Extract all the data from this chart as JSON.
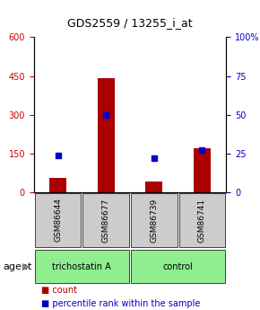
{
  "title": "GDS2559 / 13255_i_at",
  "samples": [
    "GSM86644",
    "GSM86677",
    "GSM86739",
    "GSM86741"
  ],
  "counts": [
    55,
    440,
    40,
    170
  ],
  "percentile_ranks": [
    24,
    50,
    22,
    27
  ],
  "ylim_left": [
    0,
    600
  ],
  "ylim_right": [
    0,
    100
  ],
  "yticks_left": [
    0,
    150,
    300,
    450,
    600
  ],
  "yticks_right": [
    0,
    25,
    50,
    75,
    100
  ],
  "groups": [
    {
      "label": "trichostatin A",
      "samples": [
        0,
        1
      ],
      "color": "#90EE90"
    },
    {
      "label": "control",
      "samples": [
        2,
        3
      ],
      "color": "#90EE90"
    }
  ],
  "agent_label": "agent",
  "bar_color": "#AA0000",
  "dot_color": "#0000CC",
  "legend_count_label": "count",
  "legend_pct_label": "percentile rank within the sample",
  "grid_color": "#000000",
  "background_color": "#ffffff",
  "sample_box_color": "#CCCCCC",
  "left_tick_color": "#CC0000",
  "right_tick_color": "#0000CC"
}
